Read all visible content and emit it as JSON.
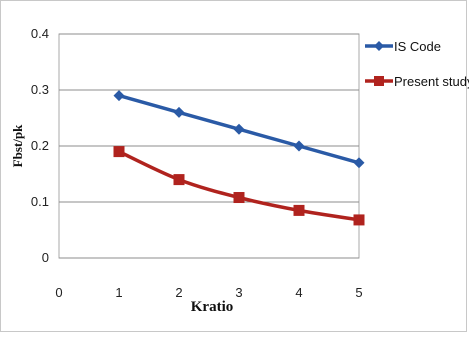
{
  "chart_data": {
    "type": "line",
    "title": "",
    "xlabel": "Kratio",
    "ylabel": "Fbst/pk",
    "xlim": [
      0,
      5
    ],
    "ylim": [
      0,
      0.4
    ],
    "xticks": [
      "0",
      "1",
      "2",
      "3",
      "4",
      "5"
    ],
    "yticks": [
      "0",
      "0.1",
      "0.2",
      "0.3",
      "0.4"
    ],
    "grid": "horizontal",
    "legend_position": "right",
    "series": [
      {
        "name": "IS Code",
        "color": "#2a5aa6",
        "marker": "diamond",
        "x": [
          1,
          2,
          3,
          4,
          5
        ],
        "values": [
          0.29,
          0.26,
          0.23,
          0.2,
          0.17
        ]
      },
      {
        "name": "Present study",
        "color": "#b0231e",
        "marker": "square",
        "x": [
          1,
          2,
          3,
          4,
          5
        ],
        "values": [
          0.19,
          0.14,
          0.108,
          0.085,
          0.068
        ]
      }
    ]
  }
}
